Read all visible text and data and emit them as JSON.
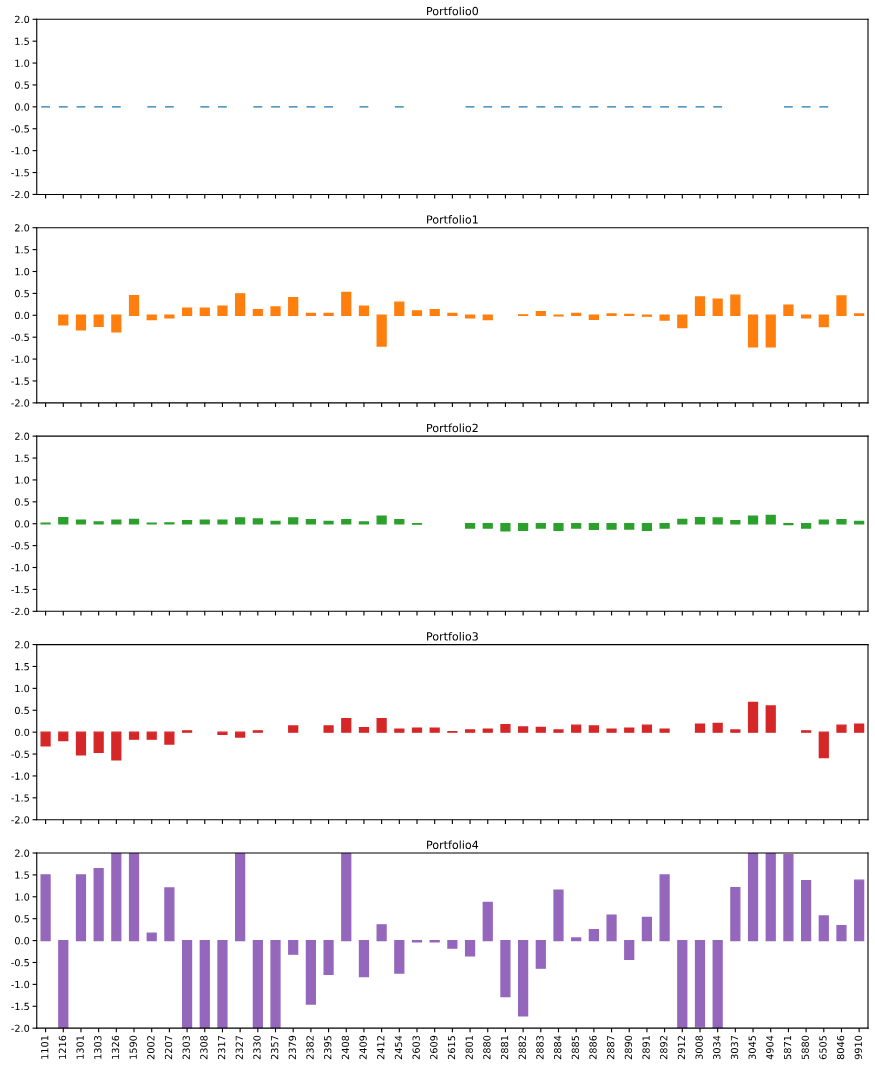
{
  "chart_data": [
    {
      "type": "bar",
      "title": "Portfolio0",
      "color": "#1f77b4",
      "tick_labels": "y",
      "categories": [
        "1101",
        "1216",
        "1301",
        "1303",
        "1326",
        "1590",
        "2002",
        "2207",
        "2303",
        "2308",
        "2317",
        "2327",
        "2330",
        "2357",
        "2379",
        "2382",
        "2395",
        "2408",
        "2409",
        "2412",
        "2454",
        "2603",
        "2609",
        "2615",
        "2801",
        "2880",
        "2881",
        "2882",
        "2883",
        "2884",
        "2885",
        "2886",
        "2887",
        "2890",
        "2891",
        "2892",
        "2912",
        "3008",
        "3034",
        "3037",
        "3045",
        "4904",
        "5871",
        "5880",
        "6505",
        "8046",
        "9910"
      ],
      "values": [
        0,
        0,
        0,
        0,
        0,
        null,
        0,
        0,
        null,
        0,
        0,
        null,
        0,
        0,
        0,
        0,
        0,
        null,
        0,
        null,
        0,
        null,
        null,
        null,
        0,
        0,
        0,
        0,
        0,
        0,
        0,
        0,
        0,
        0,
        0,
        0,
        0,
        0,
        0,
        null,
        null,
        null,
        0,
        0,
        0,
        null,
        null
      ],
      "ylim": [
        -2,
        2
      ],
      "yticks": [
        {
          "value": -2,
          "label": "-2.0"
        },
        {
          "value": -1.5,
          "label": "-1.5"
        },
        {
          "value": -1,
          "label": "-1.0"
        },
        {
          "value": -0.5,
          "label": "-0.5"
        },
        {
          "value": 0,
          "label": "0.0"
        },
        {
          "value": 0.5,
          "label": "0.5"
        },
        {
          "value": 1,
          "label": "1.0"
        },
        {
          "value": 1.5,
          "label": "1.5"
        },
        {
          "value": 2,
          "label": "2.0"
        }
      ]
    },
    {
      "type": "bar",
      "title": "Portfolio1",
      "color": "#ff7f0e",
      "tick_labels": "y",
      "categories": [
        "1101",
        "1216",
        "1301",
        "1303",
        "1326",
        "1590",
        "2002",
        "2207",
        "2303",
        "2308",
        "2317",
        "2327",
        "2330",
        "2357",
        "2379",
        "2382",
        "2395",
        "2408",
        "2409",
        "2412",
        "2454",
        "2603",
        "2609",
        "2615",
        "2801",
        "2880",
        "2881",
        "2882",
        "2883",
        "2884",
        "2885",
        "2886",
        "2887",
        "2890",
        "2891",
        "2892",
        "2912",
        "3008",
        "3034",
        "3037",
        "3045",
        "4904",
        "5871",
        "5880",
        "6505",
        "8046",
        "9910"
      ],
      "values": [
        null,
        -0.22,
        -0.33,
        -0.25,
        -0.38,
        0.45,
        -0.1,
        -0.06,
        0.16,
        0.16,
        0.21,
        0.49,
        0.13,
        0.19,
        0.4,
        0.04,
        0.04,
        0.52,
        0.21,
        -0.7,
        0.3,
        0.1,
        0.13,
        0.04,
        -0.06,
        -0.1,
        null,
        0.01,
        0.08,
        -0.01,
        0.04,
        -0.09,
        0.03,
        0.02,
        -0.02,
        -0.11,
        -0.28,
        0.42,
        0.37,
        0.46,
        -0.72,
        -0.72,
        0.23,
        -0.06,
        -0.26,
        0.44,
        0.03
      ],
      "ylim": [
        -2,
        2
      ],
      "yticks": [
        {
          "value": -2,
          "label": "-2.0"
        },
        {
          "value": -1.5,
          "label": "-1.5"
        },
        {
          "value": -1,
          "label": "-1.0"
        },
        {
          "value": -0.5,
          "label": "-0.5"
        },
        {
          "value": 0,
          "label": "0.0"
        },
        {
          "value": 0.5,
          "label": "0.5"
        },
        {
          "value": 1,
          "label": "1.0"
        },
        {
          "value": 1.5,
          "label": "1.5"
        },
        {
          "value": 2,
          "label": "2.0"
        }
      ]
    },
    {
      "type": "bar",
      "title": "Portfolio2",
      "color": "#2ca02c",
      "tick_labels": "y",
      "categories": [
        "1101",
        "1216",
        "1301",
        "1303",
        "1326",
        "1590",
        "2002",
        "2207",
        "2303",
        "2308",
        "2317",
        "2327",
        "2330",
        "2357",
        "2379",
        "2382",
        "2395",
        "2408",
        "2409",
        "2412",
        "2454",
        "2603",
        "2609",
        "2615",
        "2801",
        "2880",
        "2881",
        "2882",
        "2883",
        "2884",
        "2885",
        "2886",
        "2887",
        "2890",
        "2891",
        "2892",
        "2912",
        "3008",
        "3034",
        "3037",
        "3045",
        "4904",
        "5871",
        "5880",
        "6505",
        "8046",
        "9910"
      ],
      "values": [
        0.01,
        0.14,
        0.08,
        0.04,
        0.08,
        0.1,
        0.01,
        0.02,
        0.07,
        0.08,
        0.08,
        0.13,
        0.11,
        0.05,
        0.13,
        0.09,
        0.05,
        0.09,
        0.04,
        0.17,
        0.09,
        -0.01,
        null,
        null,
        -0.1,
        -0.1,
        -0.16,
        -0.15,
        -0.1,
        -0.15,
        -0.1,
        -0.13,
        -0.12,
        -0.12,
        -0.15,
        -0.1,
        0.1,
        0.14,
        0.13,
        0.07,
        0.17,
        0.19,
        -0.02,
        -0.1,
        0.08,
        0.09,
        0.05
      ],
      "ylim": [
        -2,
        2
      ],
      "yticks": [
        {
          "value": -2,
          "label": "-2.0"
        },
        {
          "value": -1.5,
          "label": "-1.5"
        },
        {
          "value": -1,
          "label": "-1.0"
        },
        {
          "value": -0.5,
          "label": "-0.5"
        },
        {
          "value": 0,
          "label": "0.0"
        },
        {
          "value": 0.5,
          "label": "0.5"
        },
        {
          "value": 1,
          "label": "1.0"
        },
        {
          "value": 1.5,
          "label": "1.5"
        },
        {
          "value": 2,
          "label": "2.0"
        }
      ]
    },
    {
      "type": "bar",
      "title": "Portfolio3",
      "color": "#d62728",
      "tick_labels": "y",
      "categories": [
        "1101",
        "1216",
        "1301",
        "1303",
        "1326",
        "1590",
        "2002",
        "2207",
        "2303",
        "2308",
        "2317",
        "2327",
        "2330",
        "2357",
        "2379",
        "2382",
        "2395",
        "2408",
        "2409",
        "2412",
        "2454",
        "2603",
        "2609",
        "2615",
        "2801",
        "2880",
        "2881",
        "2882",
        "2883",
        "2884",
        "2885",
        "2886",
        "2887",
        "2890",
        "2891",
        "2892",
        "2912",
        "3008",
        "3034",
        "3037",
        "3045",
        "4904",
        "5871",
        "5880",
        "6505",
        "8046",
        "9910"
      ],
      "values": [
        -0.31,
        -0.19,
        -0.52,
        -0.46,
        -0.63,
        -0.16,
        -0.16,
        -0.27,
        0.03,
        null,
        -0.05,
        -0.11,
        0.03,
        null,
        0.14,
        null,
        0.14,
        0.31,
        0.1,
        0.31,
        0.07,
        0.09,
        0.09,
        0.01,
        0.05,
        0.07,
        0.17,
        0.12,
        0.11,
        0.05,
        0.16,
        0.14,
        0.07,
        0.09,
        0.16,
        0.07,
        null,
        0.18,
        0.2,
        0.05,
        0.68,
        0.6,
        null,
        0.03,
        -0.58,
        0.16,
        0.18
      ],
      "ylim": [
        -2,
        2
      ],
      "yticks": [
        {
          "value": -2,
          "label": "-2.0"
        },
        {
          "value": -1.5,
          "label": "-1.5"
        },
        {
          "value": -1,
          "label": "-1.0"
        },
        {
          "value": -0.5,
          "label": "-0.5"
        },
        {
          "value": 0,
          "label": "0.0"
        },
        {
          "value": 0.5,
          "label": "0.5"
        },
        {
          "value": 1,
          "label": "1.0"
        },
        {
          "value": 1.5,
          "label": "1.5"
        },
        {
          "value": 2,
          "label": "2.0"
        }
      ]
    },
    {
      "type": "bar",
      "title": "Portfolio4",
      "color": "#9467bd",
      "categories": [
        "1101",
        "1216",
        "1301",
        "1303",
        "1326",
        "1590",
        "2002",
        "2207",
        "2303",
        "2308",
        "2317",
        "2327",
        "2330",
        "2357",
        "2379",
        "2382",
        "2395",
        "2408",
        "2409",
        "2412",
        "2454",
        "2603",
        "2609",
        "2615",
        "2801",
        "2880",
        "2881",
        "2882",
        "2883",
        "2884",
        "2885",
        "2886",
        "2887",
        "2890",
        "2891",
        "2892",
        "2912",
        "3008",
        "3034",
        "3037",
        "3045",
        "4904",
        "5871",
        "5880",
        "6505",
        "8046",
        "9910"
      ],
      "values": [
        1.5,
        -2.0,
        1.5,
        1.64,
        2.0,
        2.0,
        0.17,
        1.2,
        -2.0,
        -2.0,
        -2.0,
        2.0,
        -2.0,
        -2.0,
        -0.31,
        -1.45,
        -0.77,
        2.0,
        -0.82,
        0.36,
        -0.74,
        -0.03,
        -0.03,
        -0.17,
        -0.35,
        0.87,
        -1.28,
        -1.72,
        -0.63,
        1.15,
        0.06,
        0.25,
        0.58,
        -0.43,
        0.53,
        1.5,
        -2.0,
        -1.97,
        -2.0,
        1.21,
        2.0,
        2.0,
        1.96,
        1.37,
        0.56,
        0.34,
        1.38
      ],
      "ylim": [
        -2,
        2
      ],
      "yticks": [
        {
          "value": -2,
          "label": "-2.0"
        },
        {
          "value": -1.5,
          "label": "-1.5"
        },
        {
          "value": -1,
          "label": "-1.0"
        },
        {
          "value": -0.5,
          "label": "-0.5"
        },
        {
          "value": 0,
          "label": "0.0"
        },
        {
          "value": 0.5,
          "label": "0.5"
        },
        {
          "value": 1,
          "label": "1.0"
        },
        {
          "value": 1.5,
          "label": "1.5"
        },
        {
          "value": 2,
          "label": "2.0"
        }
      ]
    }
  ]
}
